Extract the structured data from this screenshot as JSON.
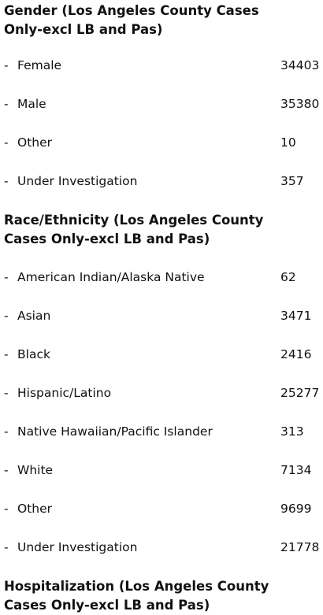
{
  "sections": [
    {
      "heading": "Gender (Los Angeles County Cases Only-excl LB and Pas)",
      "rows": [
        {
          "label": "Female",
          "value": "34403"
        },
        {
          "label": "Male",
          "value": "35380"
        },
        {
          "label": "Other",
          "value": "10"
        },
        {
          "label": "Under Investigation",
          "value": "357"
        }
      ]
    },
    {
      "heading": "Race/Ethnicity (Los Angeles County Cases Only-excl LB and Pas)",
      "rows": [
        {
          "label": "American Indian/Alaska Native",
          "value": "62"
        },
        {
          "label": "Asian",
          "value": "3471"
        },
        {
          "label": "Black",
          "value": "2416"
        },
        {
          "label": "Hispanic/Latino",
          "value": "25277"
        },
        {
          "label": "Native Hawaiian/Pacific Islander",
          "value": "313"
        },
        {
          "label": "White",
          "value": "7134"
        },
        {
          "label": "Other",
          "value": "9699"
        },
        {
          "label": "Under Investigation",
          "value": "21778"
        }
      ]
    },
    {
      "heading": "Hospitalization (Los Angeles County Cases Only-excl LB and Pas)",
      "rows": []
    }
  ]
}
